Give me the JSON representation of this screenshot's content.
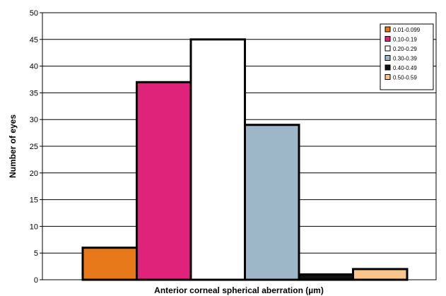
{
  "chart_data": {
    "type": "bar",
    "title": "",
    "xlabel": "Anterior corneal spherical aberration (µm)",
    "ylabel": "Number of eyes",
    "ylim": [
      0,
      50
    ],
    "yticks": [
      0,
      5,
      10,
      15,
      20,
      25,
      30,
      35,
      40,
      45,
      50
    ],
    "grid": true,
    "legend_position": "top-right",
    "categories": [
      "0.01-0.099",
      "0.10-0.19",
      "0.20-0.29",
      "0.30-0.39",
      "0.40-0.49",
      "0.50-0.59"
    ],
    "values": [
      6,
      37,
      45,
      29,
      1,
      2
    ],
    "colors": [
      "#e8791a",
      "#e0237a",
      "#ffffff",
      "#9db7c9",
      "#111111",
      "#f9c58a"
    ]
  }
}
